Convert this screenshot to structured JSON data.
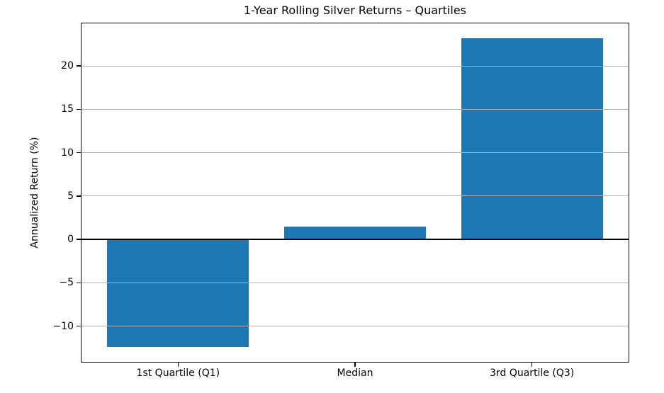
{
  "figure": {
    "title": "1-Year Rolling Silver Returns – Quartiles"
  },
  "chart_data": {
    "type": "bar",
    "title": "1-Year Rolling Silver Returns – Quartiles",
    "categories": [
      "1st Quartile (Q1)",
      "Median",
      "3rd Quartile (Q3)"
    ],
    "values": [
      -12.4,
      1.5,
      23.2
    ],
    "xlabel": "",
    "ylabel": "Annualized Return (%)",
    "ylim": [
      -14.2,
      25.0
    ],
    "yticks": [
      -10,
      -5,
      0,
      5,
      10,
      15,
      20
    ],
    "bar_color": "#1f77b4",
    "bar_width_fraction": 0.8,
    "grid": "horizontal-y-on",
    "grid_color": "#b0b0b0",
    "grid_above_bars": true,
    "zero_line": true,
    "zero_line_color": "#000000",
    "axis_color": "#000000",
    "text_color": "#000000",
    "background_color": "#ffffff",
    "legend": "none"
  }
}
